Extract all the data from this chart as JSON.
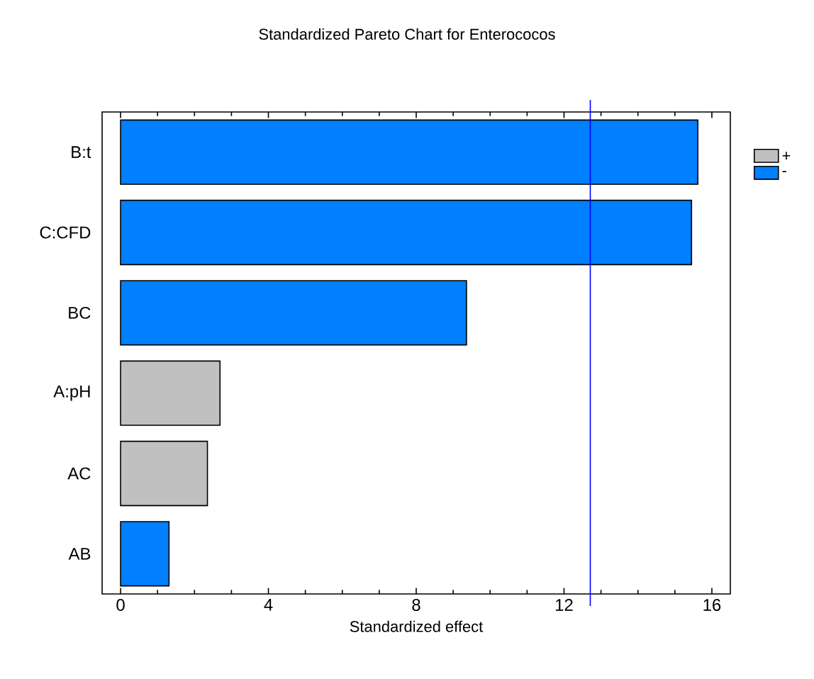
{
  "chart_data": {
    "type": "bar",
    "orientation": "horizontal",
    "title": "Standardized Pareto Chart for Enterococos",
    "xlabel": "Standardized effect",
    "categories": [
      "B:t",
      "C:CFD",
      "BC",
      "A:pH",
      "AC",
      "AB"
    ],
    "series": [
      {
        "name": "+",
        "color": "#c0c0c0",
        "values": [
          null,
          null,
          null,
          2.69,
          2.35,
          null
        ]
      },
      {
        "name": "-",
        "color": "#0080ff",
        "values": [
          15.62,
          15.45,
          9.36,
          null,
          null,
          1.31
        ]
      }
    ],
    "xlim": [
      -0.5,
      16.5
    ],
    "xticks": [
      0,
      4,
      8,
      12,
      16
    ],
    "ref_lines": [
      {
        "axis": "x",
        "value": 12.71,
        "color": "#0000ff"
      }
    ],
    "legend": "right",
    "grid": false
  }
}
